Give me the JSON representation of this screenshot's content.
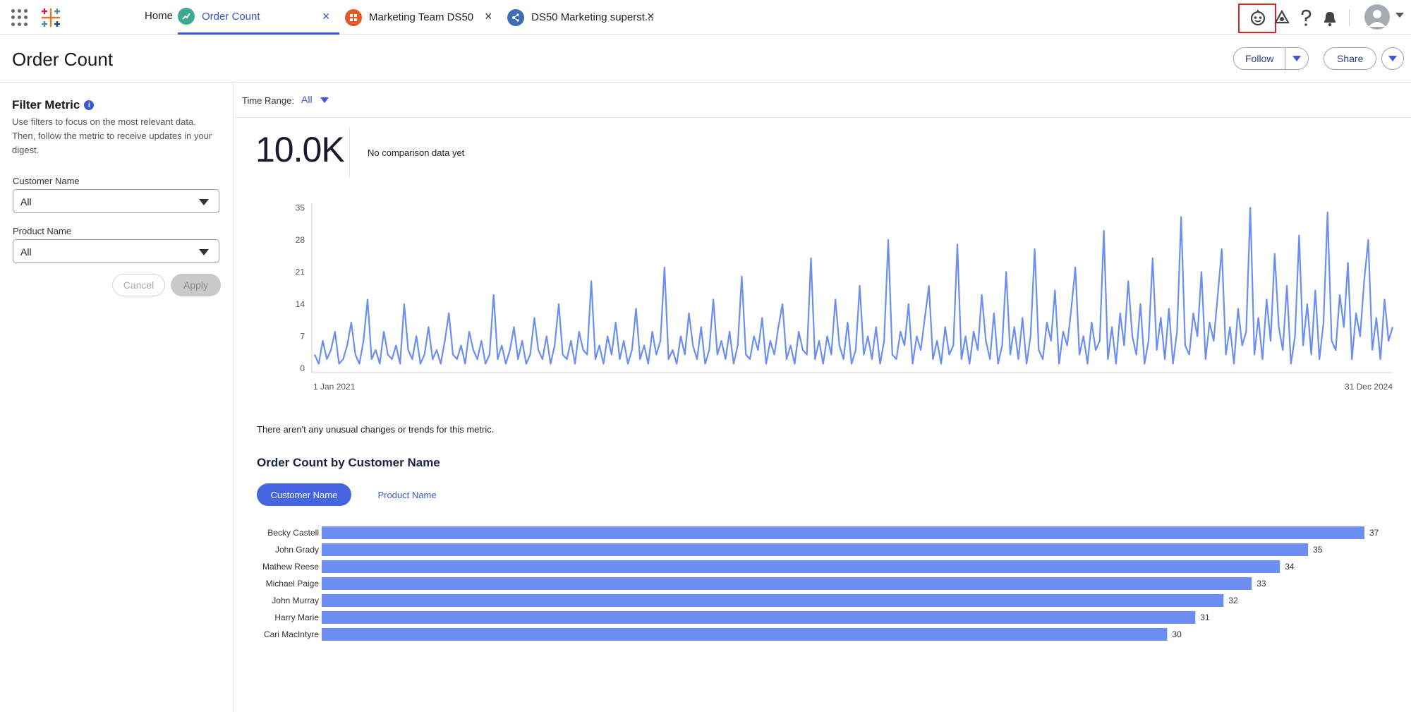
{
  "tabs": {
    "home": "Home",
    "items": [
      {
        "label": "Order Count",
        "active": true,
        "icon": "metric-icon",
        "color": "#3fa98f"
      },
      {
        "label": "Marketing Team DS50",
        "active": false,
        "icon": "collection-icon",
        "color": "#e25a2a"
      },
      {
        "label": "DS50 Marketing superst...",
        "active": false,
        "icon": "data-source-icon",
        "color": "#3e6fb5"
      }
    ],
    "close_glyph": "×"
  },
  "header": {
    "title": "Order Count",
    "follow_label": "Follow",
    "share_label": "Share"
  },
  "filter": {
    "title": "Filter Metric",
    "info_glyph": "i",
    "description": "Use filters to focus on the most relevant data. Then, follow the metric to receive updates in your digest.",
    "customer_label": "Customer Name",
    "customer_value": "All",
    "product_label": "Product Name",
    "product_value": "All",
    "cancel_label": "Cancel",
    "apply_label": "Apply"
  },
  "time_range": {
    "label": "Time Range:",
    "value": "All"
  },
  "metric": {
    "value": "10.0K",
    "comparison": "No comparison data yet"
  },
  "insight": {
    "text": "There aren't any unusual changes or trends for this metric."
  },
  "breakdown": {
    "title": "Order Count by Customer Name",
    "tabs": [
      "Customer Name",
      "Product Name"
    ]
  },
  "chart_data": [
    {
      "type": "line",
      "title": "",
      "x_range": [
        "1 Jan 2021",
        "31 Dec 2024"
      ],
      "x_tick_labels": [
        "1 Jan 2021",
        "31 Dec 2024"
      ],
      "y_ticks": [
        0,
        7,
        14,
        21,
        28,
        35
      ],
      "ylim": [
        0,
        36
      ],
      "color": "#6b8ef0",
      "series": [
        {
          "values": [
            3,
            1,
            6,
            2,
            4,
            8,
            1,
            2,
            5,
            10,
            3,
            1,
            6,
            15,
            2,
            4,
            1,
            8,
            3,
            2,
            5,
            1,
            14,
            4,
            2,
            7,
            1,
            3,
            9,
            2,
            4,
            1,
            6,
            12,
            3,
            2,
            5,
            1,
            8,
            4,
            2,
            6,
            1,
            3,
            16,
            2,
            5,
            1,
            4,
            9,
            2,
            6,
            1,
            3,
            11,
            4,
            2,
            7,
            1,
            5,
            14,
            3,
            2,
            6,
            1,
            8,
            4,
            3,
            19,
            2,
            5,
            1,
            7,
            3,
            10,
            2,
            6,
            1,
            4,
            13,
            2,
            5,
            1,
            8,
            3,
            6,
            22,
            2,
            4,
            1,
            7,
            3,
            12,
            5,
            2,
            9,
            1,
            4,
            15,
            3,
            6,
            2,
            8,
            1,
            5,
            20,
            3,
            2,
            7,
            4,
            11,
            1,
            6,
            3,
            9,
            14,
            2,
            5,
            1,
            8,
            4,
            3,
            24,
            2,
            6,
            1,
            7,
            3,
            15,
            5,
            2,
            10,
            1,
            4,
            18,
            3,
            7,
            2,
            9,
            1,
            6,
            28,
            3,
            2,
            8,
            5,
            14,
            1,
            7,
            4,
            11,
            18,
            2,
            6,
            1,
            9,
            3,
            5,
            27,
            2,
            7,
            1,
            8,
            4,
            16,
            6,
            2,
            12,
            1,
            5,
            21,
            3,
            9,
            2,
            11,
            1,
            7,
            26,
            4,
            2,
            10,
            6,
            17,
            1,
            8,
            5,
            13,
            22,
            3,
            7,
            1,
            10,
            4,
            6,
            30,
            2,
            9,
            1,
            12,
            5,
            19,
            7,
            3,
            14,
            1,
            6,
            24,
            4,
            11,
            2,
            13,
            1,
            8,
            33,
            5,
            3,
            12,
            7,
            21,
            2,
            10,
            6,
            16,
            26,
            3,
            9,
            1,
            13,
            5,
            8,
            35,
            3,
            11,
            2,
            15,
            6,
            25,
            9,
            4,
            18,
            1,
            7,
            29,
            5,
            14,
            3,
            17,
            2,
            10,
            34,
            6,
            4,
            16,
            9,
            23,
            2,
            12,
            7,
            19,
            28,
            4,
            11,
            2,
            15,
            6,
            9
          ],
          "note": ""
        }
      ]
    },
    {
      "type": "bar",
      "orientation": "horizontal",
      "title": "Order Count by Customer Name",
      "categories": [
        "Becky Castell",
        "John Grady",
        "Mathew Reese",
        "Michael Paige",
        "John Murray",
        "Harry Marie",
        "Cari MacIntyre"
      ],
      "values": [
        37,
        35,
        34,
        33,
        32,
        31,
        30
      ],
      "color": "#6b8ef0",
      "xlim": [
        0,
        37
      ]
    }
  ]
}
